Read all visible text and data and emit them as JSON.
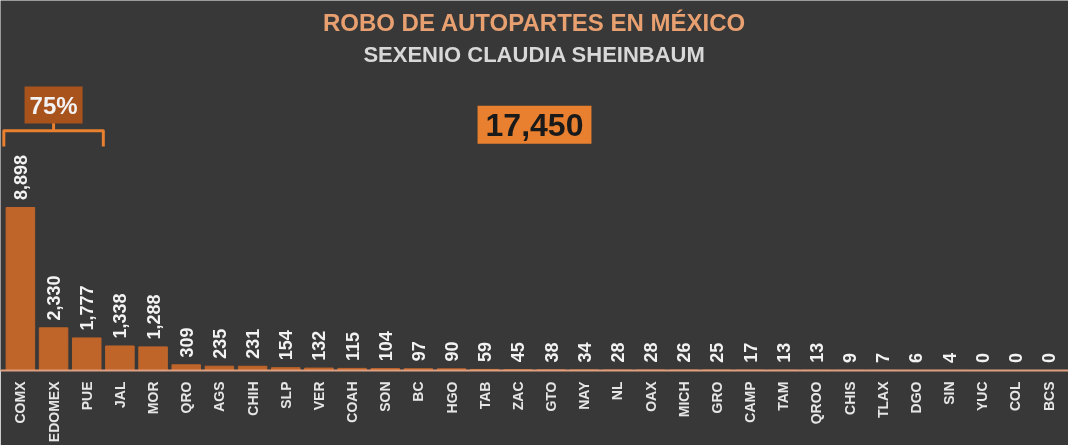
{
  "chart_data": {
    "type": "bar",
    "title": "ROBO DE AUTOPARTES EN MÉXICO",
    "subtitle": "SEXENIO CLAUDIA SHEINBAUM",
    "annotations": [
      "17,450",
      "75%"
    ],
    "categories": [
      "COMX",
      "EDOMEX",
      "PUE",
      "JAL",
      "MOR",
      "QRO",
      "AGS",
      "CHIH",
      "SLP",
      "VER",
      "COAH",
      "SON",
      "BC",
      "HGO",
      "TAB",
      "ZAC",
      "GTO",
      "NAY",
      "NL",
      "OAX",
      "MICH",
      "GRO",
      "CAMP",
      "TAM",
      "QROO",
      "CHIS",
      "TLAX",
      "DGO",
      "SIN",
      "YUC",
      "COL",
      "BCS"
    ],
    "values": [
      8898,
      2330,
      1777,
      1338,
      1288,
      309,
      235,
      231,
      154,
      132,
      115,
      104,
      97,
      90,
      59,
      45,
      38,
      34,
      28,
      28,
      26,
      25,
      17,
      13,
      13,
      9,
      7,
      6,
      4,
      0,
      0,
      0
    ],
    "value_labels": [
      "8,898",
      "2,330",
      "1,777",
      "1,338",
      "1,288",
      "309",
      "235",
      "231",
      "154",
      "132",
      "115",
      "104",
      "97",
      "90",
      "59",
      "45",
      "38",
      "34",
      "28",
      "28",
      "26",
      "25",
      "17",
      "13",
      "13",
      "9",
      "7",
      "6",
      "4",
      "0",
      "0",
      "0"
    ],
    "color": "#c0652a",
    "grid": false
  }
}
